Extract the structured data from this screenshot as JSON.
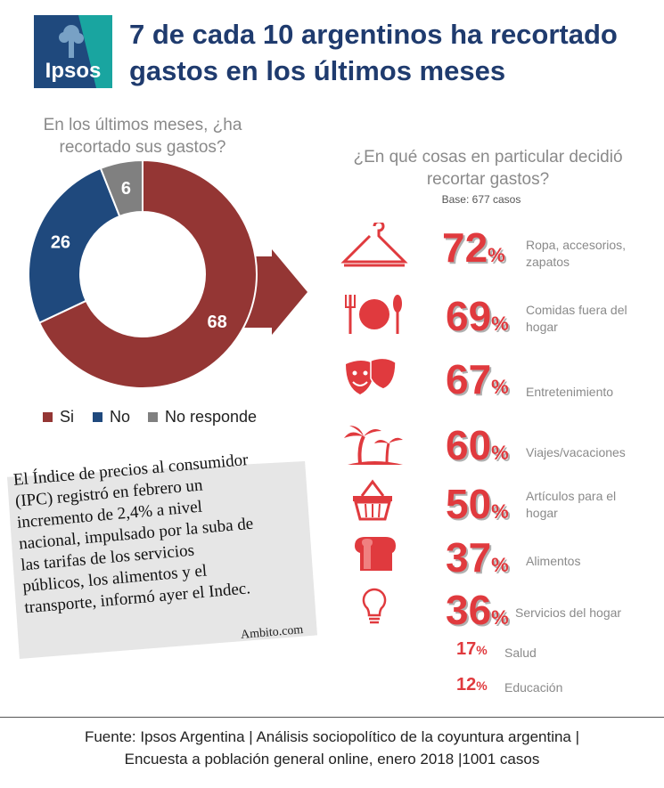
{
  "logo": {
    "text": "Ipsos"
  },
  "title": {
    "line1": "7 de cada 10 argentinos ha recortado",
    "line2": "gastos en los últimos meses"
  },
  "question1": {
    "line1": "En los últimos meses, ¿ha",
    "line2": "recortado sus gastos?"
  },
  "question2": {
    "line1": "¿En qué cosas en particular decidió",
    "line2": "recortar gastos?"
  },
  "base": "Base: 677 casos",
  "colors": {
    "si": "#943634",
    "no": "#1f497d",
    "nr": "#808080",
    "accent": "#e03a3e",
    "title": "#1f3b6e"
  },
  "chart_data": [
    {
      "type": "pie",
      "subtype": "donut",
      "title": "En los últimos meses, ¿ha recortado sus gastos?",
      "categories": [
        "Si",
        "No",
        "No responde"
      ],
      "values": [
        68,
        26,
        6
      ],
      "legend": "bottom"
    },
    {
      "type": "table",
      "title": "¿En qué cosas en particular decidió recortar gastos?",
      "items": [
        {
          "label1": "Ropa, accesorios,",
          "label2": "zapatos",
          "value": "72",
          "icon": "hanger-icon"
        },
        {
          "label1": "Comidas fuera del",
          "label2": "hogar",
          "value": "69",
          "icon": "cutlery-icon"
        },
        {
          "label1": "Entretenimiento",
          "label2": "",
          "value": "67",
          "icon": "theater-masks-icon"
        },
        {
          "label1": "Viajes/vacaciones",
          "label2": "",
          "value": "60",
          "icon": "palm-trees-icon"
        },
        {
          "label1": "Artículos para el",
          "label2": "hogar",
          "value": "50",
          "icon": "basket-icon"
        },
        {
          "label1": "Alimentos",
          "label2": "",
          "value": "37",
          "icon": "bread-icon"
        },
        {
          "label1": "Servicios del hogar",
          "label2": "",
          "value": "36",
          "icon": "lightbulb-icon"
        },
        {
          "label1": "Salud",
          "label2": "",
          "value": "17",
          "icon": ""
        },
        {
          "label1": "Educación",
          "label2": "",
          "value": "12",
          "icon": ""
        }
      ],
      "unit": "%"
    }
  ],
  "legend": {
    "si": "Si",
    "no": "No",
    "nr": "No responde"
  },
  "note": {
    "lines": [
      "El Índice de precios al consumidor",
      "(IPC) registró en febrero un",
      "incremento de 2,4% a nivel",
      "nacional, impulsado por la suba de",
      "las tarifas de los servicios",
      "públicos, los alimentos y el",
      "transporte, informó ayer el Indec."
    ],
    "source": "Ambito.com"
  },
  "footer": {
    "line1": "Fuente: Ipsos Argentina | Análisis sociopolítico de la coyuntura argentina |",
    "line2": "Encuesta a población general online, enero 2018 |1001 casos"
  }
}
